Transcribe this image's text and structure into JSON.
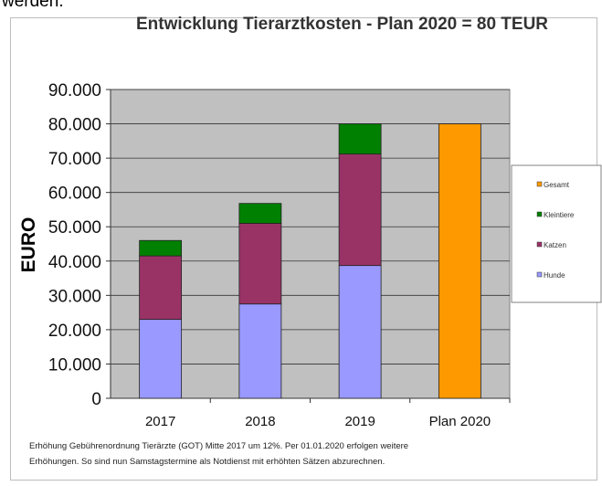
{
  "page_text": {
    "top_fragment": "werden."
  },
  "chart_data": {
    "type": "bar",
    "stacked": true,
    "title": "Entwicklung Tierarztkosten - Plan 2020 = 80 TEUR",
    "xlabel": "",
    "ylabel": "EURO",
    "ylim": [
      0,
      90000
    ],
    "yticks": [
      0,
      10000,
      20000,
      30000,
      40000,
      50000,
      60000,
      70000,
      80000,
      90000
    ],
    "ytick_labels": [
      "0",
      "10.000",
      "20.000",
      "30.000",
      "40.000",
      "50.000",
      "60.000",
      "70.000",
      "80.000",
      "90.000"
    ],
    "categories": [
      "2017",
      "2018",
      "2019",
      "Plan 2020"
    ],
    "series": [
      {
        "name": "Hunde",
        "color": "#9999ff",
        "values": [
          23000,
          27500,
          38700,
          0
        ]
      },
      {
        "name": "Katzen",
        "color": "#993366",
        "values": [
          18500,
          23500,
          32500,
          0
        ]
      },
      {
        "name": "Kleintiere",
        "color": "#008000",
        "values": [
          4500,
          5800,
          8800,
          0
        ]
      },
      {
        "name": "Gesamt",
        "color": "#ff9900",
        "values": [
          0,
          0,
          0,
          80000
        ]
      }
    ],
    "legend_order": [
      "Gesamt",
      "Kleintiere",
      "Katzen",
      "Hunde"
    ],
    "legend_position": "right",
    "grid": true,
    "plot_background": "#c0c0c0"
  },
  "footnote": {
    "line1": "Erhöhung Gebührenordnung Tierärzte (GOT) Mitte 2017 um 12%. Per 01.01.2020 erfolgen weitere",
    "line2": "Erhöhungen. So sind nun Samstagstermine als Notdienst mit erhöhten Sätzen abzurechnen."
  }
}
